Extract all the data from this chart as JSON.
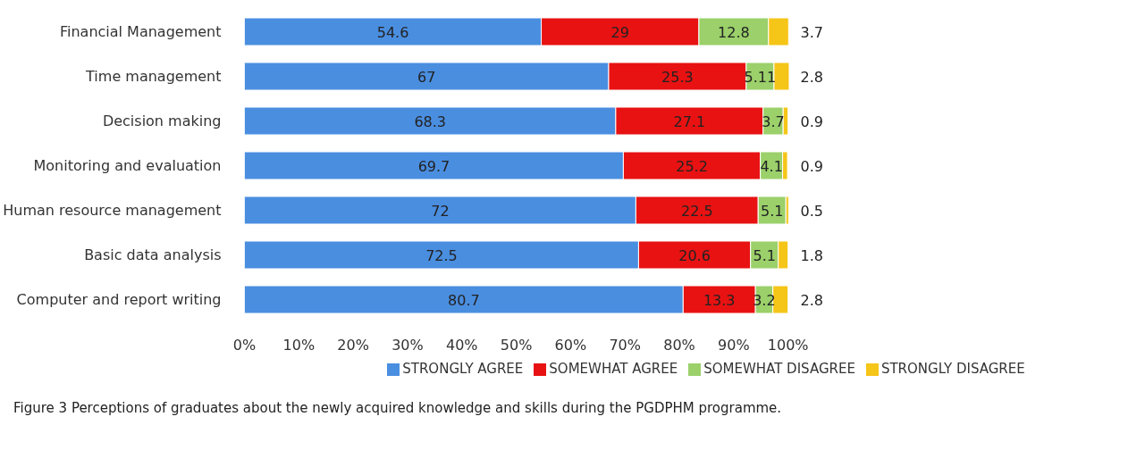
{
  "chart_data": {
    "type": "bar",
    "orientation": "horizontal",
    "stacked": true,
    "categories": [
      "Financial Management",
      "Time management",
      "Decision making",
      "Monitoring and evaluation",
      "Human resource management",
      "Basic data analysis",
      "Computer and report writing"
    ],
    "series": [
      {
        "name": "STRONGLY AGREE",
        "color": "#4a8ee0",
        "values": [
          54.6,
          67,
          68.3,
          69.7,
          72,
          72.5,
          80.7
        ]
      },
      {
        "name": "SOMEWHAT AGREE",
        "color": "#e81212",
        "values": [
          29,
          25.3,
          27.1,
          25.2,
          22.5,
          20.6,
          13.3
        ]
      },
      {
        "name": "SOMEWHAT DISAGREE",
        "color": "#9bd06a",
        "values": [
          12.8,
          5.11,
          3.7,
          4.1,
          5.1,
          5.1,
          3.2
        ]
      },
      {
        "name": "STRONGLY DISAGREE",
        "color": "#f5c518",
        "values": [
          3.7,
          2.8,
          0.9,
          0.9,
          0.5,
          1.8,
          2.8
        ]
      }
    ],
    "xlim": [
      0,
      100.3
    ],
    "xticks": [
      {
        "value": 0,
        "label": "0%"
      },
      {
        "value": 10,
        "label": "10%"
      },
      {
        "value": 20,
        "label": "20%"
      },
      {
        "value": 30,
        "label": "30%"
      },
      {
        "value": 40,
        "label": "40%"
      },
      {
        "value": 50,
        "label": "50%"
      },
      {
        "value": 60,
        "label": "60%"
      },
      {
        "value": 70,
        "label": "70%"
      },
      {
        "value": 80,
        "label": "80%"
      },
      {
        "value": 90,
        "label": "90%"
      },
      {
        "value": 100,
        "label": "100%"
      }
    ],
    "data_labels": true,
    "grid": false,
    "legend": "bottom",
    "annotations": [
      "Figure 3 Perceptions of graduates about the newly acquired knowledge and skills during the PGDPHM programme."
    ]
  }
}
